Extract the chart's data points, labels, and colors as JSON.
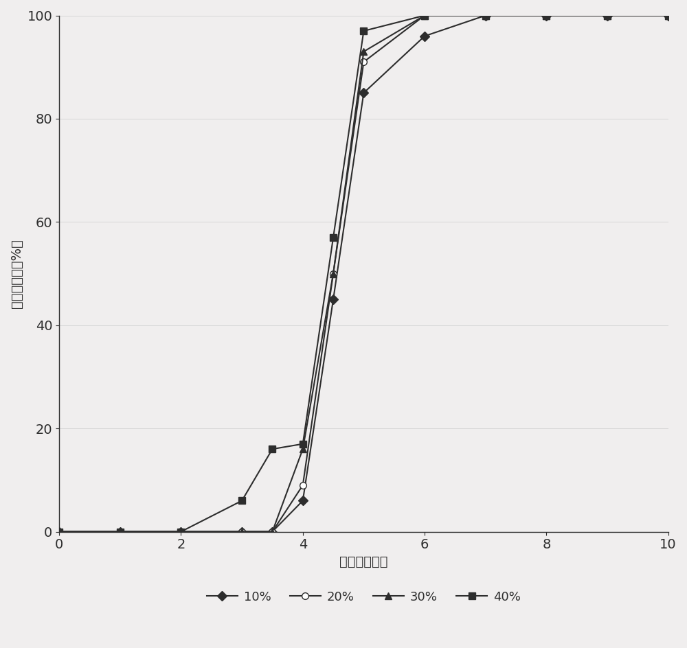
{
  "series": {
    "10%": {
      "x": [
        0,
        1,
        2,
        3,
        3.5,
        4,
        4.5,
        5,
        6,
        7,
        8,
        9,
        10
      ],
      "y": [
        0,
        0,
        0,
        0,
        0,
        6,
        45,
        85,
        96,
        100,
        100,
        100,
        100
      ],
      "color": "#2d2d2d",
      "marker": "D",
      "markersize": 7,
      "label": "10%"
    },
    "20%": {
      "x": [
        0,
        1,
        2,
        3,
        3.5,
        4,
        4.5,
        5,
        6,
        7,
        8,
        9,
        10
      ],
      "y": [
        0,
        0,
        0,
        0,
        0,
        9,
        50,
        91,
        100,
        100,
        100,
        100,
        100
      ],
      "color": "#2d2d2d",
      "marker": "o",
      "markersize": 7,
      "label": "20%"
    },
    "30%": {
      "x": [
        0,
        1,
        2,
        3,
        3.5,
        4,
        4.5,
        5,
        6,
        7,
        8,
        9,
        10
      ],
      "y": [
        0,
        0,
        0,
        0,
        0,
        16,
        50,
        93,
        100,
        100,
        100,
        100,
        100
      ],
      "color": "#2d2d2d",
      "marker": "^",
      "markersize": 7,
      "label": "30%"
    },
    "40%": {
      "x": [
        0,
        1,
        2,
        3,
        3.5,
        4,
        4.5,
        5,
        6,
        7,
        8,
        9,
        10
      ],
      "y": [
        0,
        0,
        0,
        6,
        16,
        17,
        57,
        97,
        100,
        100,
        100,
        100,
        100
      ],
      "color": "#2d2d2d",
      "marker": "s",
      "markersize": 7,
      "label": "40%"
    }
  },
  "xlabel": "时间（小时）",
  "ylabel": "累积释放度（%）",
  "xlim": [
    0,
    10
  ],
  "ylim": [
    0,
    100
  ],
  "xticks": [
    0,
    2,
    4,
    6,
    8,
    10
  ],
  "yticks": [
    0,
    20,
    40,
    60,
    80,
    100
  ],
  "legend_labels": [
    "10%",
    "20%",
    "30%",
    "40%"
  ],
  "background_color": "#f0eeee",
  "line_color": "#2d2d2d",
  "axis_color": "#2d2d2d",
  "font_size_ticks": 14,
  "font_size_labels": 14,
  "font_size_legend": 13
}
